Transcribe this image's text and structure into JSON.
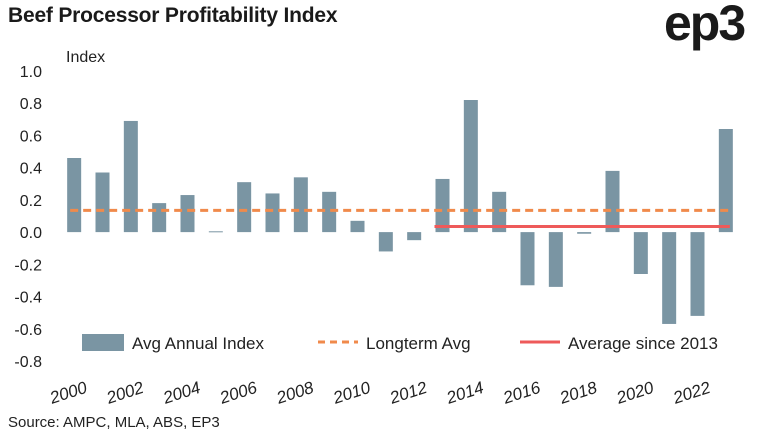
{
  "header": {
    "title": "Beef Processor Profitability Index",
    "logo": "ep3"
  },
  "footer": {
    "source": "Source: AMPC, MLA, ABS, EP3"
  },
  "colors": {
    "bar": "#7a95a3",
    "longterm": "#f08a4b",
    "since2013": "#ee5a5a"
  },
  "chart_data": {
    "type": "bar",
    "ylabel": "Index",
    "ylim": [
      -0.8,
      1.0
    ],
    "yticks": [
      "1.0",
      "0.8",
      "0.6",
      "0.4",
      "0.2",
      "0.0",
      "-0.2",
      "-0.4",
      "-0.6",
      "-0.8"
    ],
    "ytick_values": [
      1.0,
      0.8,
      0.6,
      0.4,
      0.2,
      0.0,
      -0.2,
      -0.4,
      -0.6,
      -0.8
    ],
    "categories": [
      2000,
      2001,
      2002,
      2003,
      2004,
      2005,
      2006,
      2007,
      2008,
      2009,
      2010,
      2011,
      2012,
      2013,
      2014,
      2015,
      2016,
      2017,
      2018,
      2019,
      2020,
      2021,
      2022,
      2023
    ],
    "xtick_labels": [
      "2000",
      "2002",
      "2004",
      "2006",
      "2008",
      "2010",
      "2012",
      "2014",
      "2016",
      "2018",
      "2020",
      "2022"
    ],
    "xtick_years": [
      2000,
      2002,
      2004,
      2006,
      2008,
      2010,
      2012,
      2014,
      2016,
      2018,
      2020,
      2022
    ],
    "series": [
      {
        "name": "Avg Annual Index",
        "kind": "bar",
        "values": [
          0.46,
          0.37,
          0.69,
          0.18,
          0.23,
          0.005,
          0.31,
          0.24,
          0.34,
          0.25,
          0.07,
          -0.12,
          -0.05,
          0.33,
          0.82,
          0.25,
          -0.33,
          -0.34,
          -0.01,
          0.38,
          -0.26,
          -0.57,
          -0.52,
          0.64
        ]
      },
      {
        "name": "Longterm Avg",
        "kind": "dashed-line",
        "value": 0.135,
        "from": 2000,
        "to": 2023
      },
      {
        "name": "Average since 2013",
        "kind": "solid-line",
        "value": 0.035,
        "from": 2013,
        "to": 2023
      }
    ],
    "grid": false,
    "legend": "bottom"
  }
}
